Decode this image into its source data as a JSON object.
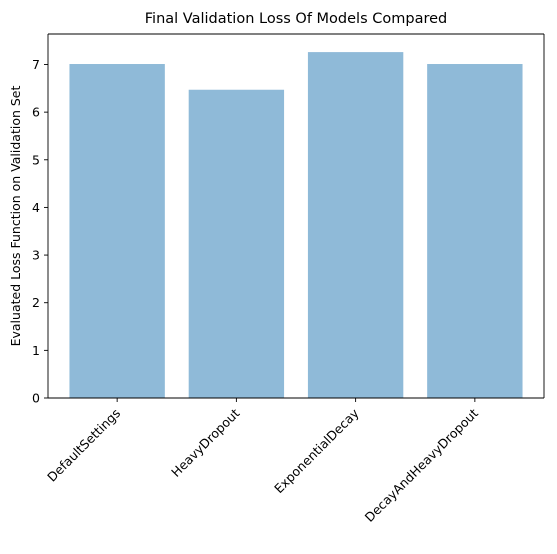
{
  "chart_data": {
    "type": "bar",
    "title": "Final Validation Loss Of Models Compared",
    "xlabel": "",
    "ylabel": "Evaluated Loss Function on Validation Set",
    "categories": [
      "DefaultSettings",
      "HeavyDropout",
      "ExponentialDecay",
      "DecayAndHeavyDropout"
    ],
    "values": [
      7.01,
      6.47,
      7.26,
      7.01
    ],
    "ylim": [
      0,
      7.64
    ],
    "yticks": [
      "0",
      "1",
      "2",
      "3",
      "4",
      "5",
      "6",
      "7"
    ],
    "bar_color": "#8fbad8",
    "grid": false,
    "legend": false
  }
}
